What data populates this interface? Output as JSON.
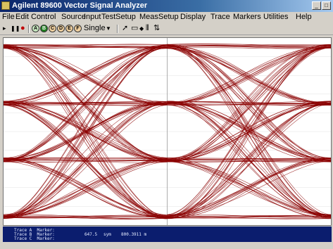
{
  "window": {
    "title": "Agilent 89600 Vector Signal Analyzer"
  },
  "menu": [
    "File",
    "Edit",
    "Control",
    "Source",
    "Input",
    "TestSetup",
    "MeasSetup",
    "Display",
    "Trace",
    "Markers",
    "Utilities",
    "Help"
  ],
  "toolbar": {
    "mode_value": "Single",
    "trace_buttons": [
      "A",
      "B",
      "C",
      "D",
      "E",
      "F"
    ]
  },
  "markers": {
    "trace_a": "Trace A  Marker:",
    "trace_b": "Trace B  Marker:",
    "trace_c": "Trace C  Marker:",
    "marker_value": "647.5",
    "marker_unit": "sym",
    "marker_readout": "800.3911 m"
  },
  "colors": {
    "eye_trace": "#8b0000",
    "marker_bg": "#0b1d6e"
  },
  "chart_data": {
    "type": "line",
    "title": "",
    "xlabel": "",
    "ylabel": "",
    "grid": true,
    "eye_levels": [
      -3,
      -1,
      1,
      3
    ],
    "symbol_periods": 2
  }
}
